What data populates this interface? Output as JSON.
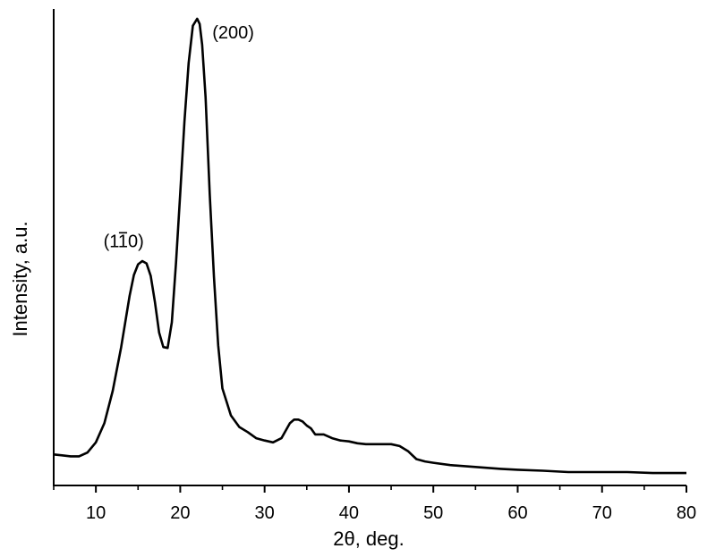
{
  "chart_data": {
    "type": "line",
    "title": "",
    "xlabel": "2θ, deg.",
    "ylabel": "Intensity, a.u.",
    "xlim": [
      5,
      80
    ],
    "ylim": [
      0,
      100
    ],
    "x_ticks": [
      10,
      20,
      30,
      40,
      50,
      60,
      70,
      80
    ],
    "x_tick_labels": [
      "10",
      "20",
      "30",
      "40",
      "50",
      "60",
      "70",
      "80"
    ],
    "y_ticks_shown": false,
    "grid": false,
    "annotations": [
      {
        "text": "(200)",
        "x": 23.8,
        "y": 95.6
      },
      {
        "text_base": "(1",
        "text_bar": "1",
        "text_tail": "0)",
        "text": "(110)",
        "x": 10.9,
        "y": 50.7
      }
    ],
    "series": [
      {
        "x": [
          5,
          6,
          7,
          8,
          9,
          10,
          11,
          12,
          13,
          14,
          14.5,
          15,
          15.5,
          16,
          16.5,
          17,
          17.5,
          18,
          18.5,
          19,
          19.5,
          20,
          20.5,
          21,
          21.5,
          22,
          22.3,
          22.6,
          23,
          23.5,
          24,
          24.5,
          25,
          26,
          27,
          28,
          29,
          30,
          31,
          32,
          33,
          33.5,
          34,
          34.5,
          35,
          35.5,
          36,
          37,
          38,
          39,
          40,
          41,
          42,
          43,
          44,
          45,
          46,
          47,
          48,
          49,
          50,
          52,
          55,
          58,
          60,
          63,
          66,
          70,
          73,
          76,
          80
        ],
        "y": [
          6.1,
          5.9,
          5.7,
          5.7,
          6.5,
          8.7,
          12.8,
          19.8,
          29.2,
          40.2,
          44.7,
          47.0,
          47.7,
          47.2,
          44.5,
          38.9,
          32.3,
          29.2,
          29.0,
          34.5,
          47.4,
          62.3,
          77.7,
          90.3,
          98.3,
          99.8,
          98.7,
          94.2,
          83.0,
          61.9,
          44.2,
          29.6,
          20.3,
          14.5,
          12.0,
          10.9,
          9.6,
          9.1,
          8.7,
          9.6,
          12.8,
          13.6,
          13.6,
          13.2,
          12.3,
          11.7,
          10.4,
          10.4,
          9.6,
          9.1,
          8.9,
          8.5,
          8.3,
          8.3,
          8.3,
          8.3,
          7.9,
          6.8,
          5.1,
          4.6,
          4.3,
          3.8,
          3.4,
          3.0,
          2.8,
          2.6,
          2.3,
          2.3,
          2.3,
          2.1,
          2.1
        ]
      }
    ]
  }
}
